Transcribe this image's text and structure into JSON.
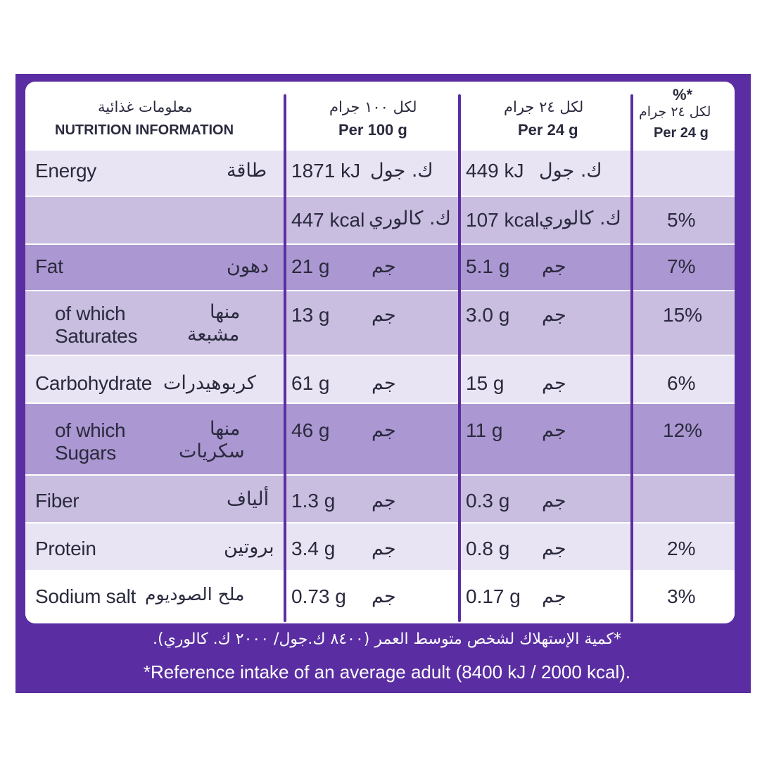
{
  "header": {
    "col1_ar": "معلومات غذائية",
    "col1_en": "NUTRITION INFORMATION",
    "col2_ar": "لكل ١٠٠ جرام",
    "col2_en": "Per 100 g",
    "col3_ar": "لكل ٢٤ جرام",
    "col3_en": "Per 24 g",
    "col4_pct": "%*",
    "col4_ar": "لكل ٢٤ جرام",
    "col4_en": "Per 24 g"
  },
  "rows": [
    {
      "en": "Energy",
      "ar": "طاقة",
      "v100": "1871 kJ",
      "u100": "ك. جول",
      "v24": "449 kJ",
      "u24": "ك. جول",
      "pct": ""
    },
    {
      "en": "",
      "ar": "",
      "v100": "447 kcal",
      "u100": "ك. كالوري",
      "v24": "107 kcal",
      "u24": "ك. كالوري",
      "pct": "5%"
    },
    {
      "en": "Fat",
      "ar": "دهون",
      "v100": "21 g",
      "u100": "جم",
      "v24": "5.1 g",
      "u24": "جم",
      "pct": "7%"
    },
    {
      "en1": "of which",
      "en2": "Saturates",
      "ar1": "منها",
      "ar2": "مشبعة",
      "v100": "13 g",
      "u100": "جم",
      "v24": "3.0 g",
      "u24": "جم",
      "pct": "15%"
    },
    {
      "en": "Carbohydrate",
      "ar": "كربوهيدرات",
      "v100": "61 g",
      "u100": "جم",
      "v24": "15 g",
      "u24": "جم",
      "pct": "6%"
    },
    {
      "en1": "of which",
      "en2": "Sugars",
      "ar1": "منها",
      "ar2": "سكريات",
      "v100": "46 g",
      "u100": "جم",
      "v24": "11 g",
      "u24": "جم",
      "pct": "12%"
    },
    {
      "en": "Fiber",
      "ar": "ألياف",
      "v100": "1.3 g",
      "u100": "جم",
      "v24": "0.3 g",
      "u24": "جم",
      "pct": ""
    },
    {
      "en": "Protein",
      "ar": "بروتين",
      "v100": "3.4 g",
      "u100": "جم",
      "v24": "0.8 g",
      "u24": "جم",
      "pct": "2%"
    },
    {
      "en": "Sodium salt",
      "ar": "ملح الصوديوم",
      "v100": "0.73 g",
      "u100": "جم",
      "v24": "0.17 g",
      "u24": "جم",
      "pct": "3%"
    }
  ],
  "footer": {
    "ar": "*كمية الإستهلاك لشخص متوسط العمر (٨٤٠٠ ك.جول/ ٢٠٠٠ ك. كالوري).",
    "en": "*Reference intake of an average adult (8400 kJ / 2000 kcal)."
  },
  "colors": {
    "border_purple": "#5a2ea2",
    "row_light": "#e9e4f3",
    "row_mid": "#c9bde0",
    "row_dark": "#ab97d1",
    "text": "#2a2a3e"
  }
}
